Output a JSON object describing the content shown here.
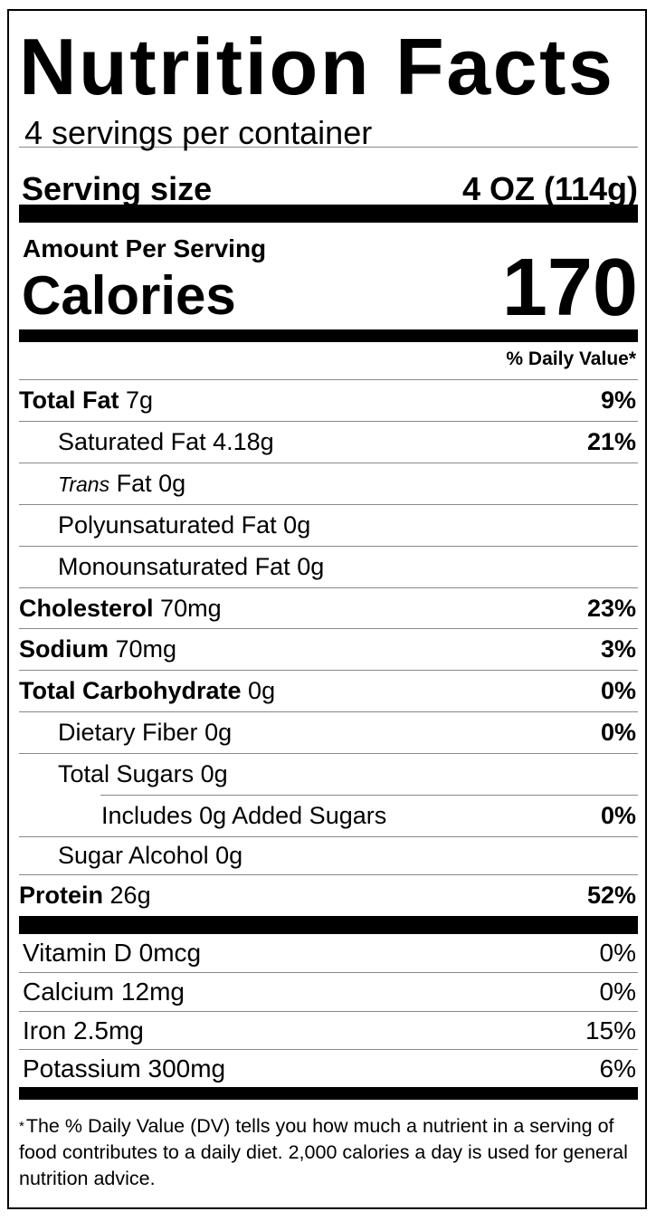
{
  "title": "Nutrition Facts",
  "servings_per_container": "4 servings per container",
  "serving_size": {
    "label": "Serving size",
    "value": "4 OZ (114g)"
  },
  "amount_per_serving": "Amount Per Serving",
  "calories": {
    "label": "Calories",
    "value": "170"
  },
  "daily_value_header": "% Daily Value*",
  "nutrients": [
    {
      "name": "Total Fat",
      "amount": "7g",
      "dv": "9%",
      "bold": true,
      "indent": 0
    },
    {
      "name": "Saturated Fat",
      "amount": "4.18g",
      "dv": "21%",
      "bold": false,
      "indent": 1
    },
    {
      "name": "Trans",
      "name_suffix": "Fat",
      "amount": "0g",
      "dv": "",
      "bold": false,
      "indent": 1,
      "italic_prefix": true
    },
    {
      "name": "Polyunsaturated Fat",
      "amount": "0g",
      "dv": "",
      "bold": false,
      "indent": 1
    },
    {
      "name": "Monounsaturated Fat",
      "amount": "0g",
      "dv": "",
      "bold": false,
      "indent": 1
    },
    {
      "name": "Cholesterol",
      "amount": "70mg",
      "dv": "23%",
      "bold": true,
      "indent": 0
    },
    {
      "name": "Sodium",
      "amount": "70mg",
      "dv": "3%",
      "bold": true,
      "indent": 0
    },
    {
      "name": "Total Carbohydrate",
      "amount": "0g",
      "dv": "0%",
      "bold": true,
      "indent": 0
    },
    {
      "name": "Dietary Fiber",
      "amount": "0g",
      "dv": "0%",
      "bold": false,
      "indent": 1
    },
    {
      "name": "Total Sugars",
      "amount": "0g",
      "dv": "",
      "bold": false,
      "indent": 1
    },
    {
      "name": "Includes 0g Added Sugars",
      "amount": "",
      "dv": "0%",
      "bold": false,
      "indent": 2
    },
    {
      "name": "Sugar Alcohol",
      "amount": "0g",
      "dv": "",
      "bold": false,
      "indent": 1
    },
    {
      "name": "Protein",
      "amount": "26g",
      "dv": "52%",
      "bold": true,
      "indent": 0
    }
  ],
  "vitamins": [
    {
      "name": "Vitamin D",
      "amount": "0mcg",
      "dv": "0%"
    },
    {
      "name": "Calcium",
      "amount": "12mg",
      "dv": "0%"
    },
    {
      "name": "Iron",
      "amount": "2.5mg",
      "dv": "15%"
    },
    {
      "name": "Potassium",
      "amount": "300mg",
      "dv": "6%"
    }
  ],
  "footnote": {
    "star": "*",
    "text": "The % Daily Value (DV) tells you how much a nutrient in a serving of food contributes to a daily diet. 2,000 calories a day is used for general nutrition advice."
  }
}
